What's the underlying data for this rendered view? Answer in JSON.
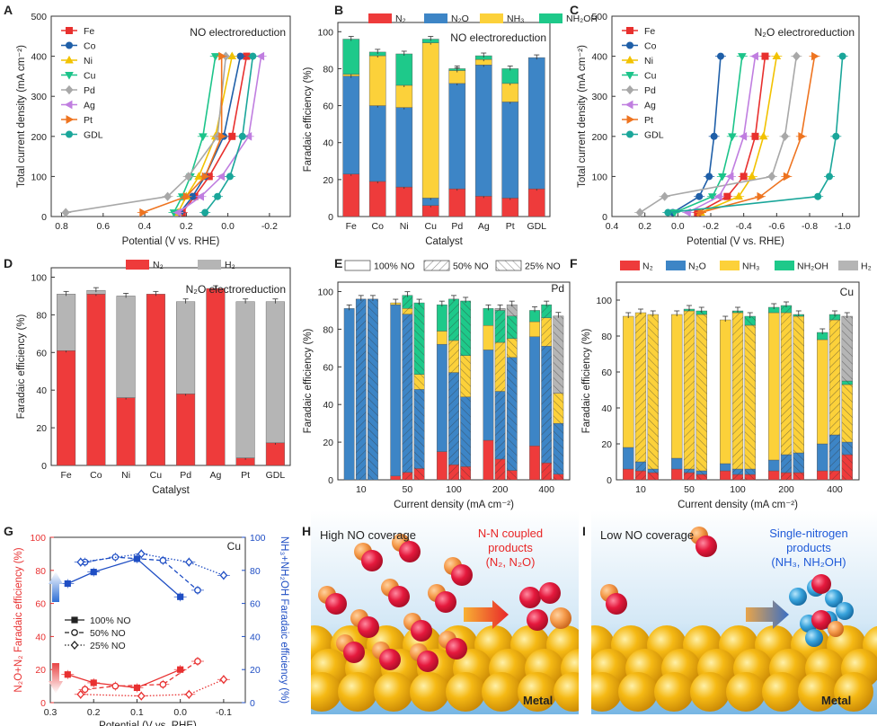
{
  "colors": {
    "N2": "#ee3b3b",
    "N2O": "#3d85c6",
    "NH3": "#fcd13a",
    "NH2OH": "#1ec98a",
    "H2": "#b5b5b5",
    "Fe": "#e8302e",
    "Co": "#1f5fa8",
    "Ni": "#f2c200",
    "Cu": "#1cc48a",
    "Pd": "#a8a8a8",
    "Ag": "#c07ee0",
    "Pt": "#ee7420",
    "GDL": "#1aa69a",
    "effRed": "#e83030",
    "effBlue": "#1f4ec4"
  },
  "chart_data": [
    {
      "id": "A",
      "type": "line",
      "letter": "A",
      "title": "NO electroreduction",
      "xlabel": "Potential (V vs. RHE)",
      "ylabel": "Total current density (mA cm⁻²)",
      "xlim": [
        0.85,
        -0.3
      ],
      "ylim": [
        0,
        500
      ],
      "xticks": [
        0.8,
        0.6,
        0.4,
        0.2,
        0.0,
        -0.2
      ],
      "xticklabels": [
        "0.8",
        "0.6",
        "0.4",
        "0.2",
        "0.0",
        "-0.2"
      ],
      "yticks": [
        0,
        100,
        200,
        300,
        400,
        500
      ],
      "legend": [
        "Fe",
        "Co",
        "Ni",
        "Cu",
        "Pd",
        "Ag",
        "Pt",
        "GDL"
      ],
      "y": [
        10,
        50,
        100,
        200,
        400
      ],
      "series": [
        {
          "name": "Fe",
          "marker": "square",
          "x": [
            0.22,
            0.16,
            0.09,
            -0.02,
            -0.09
          ]
        },
        {
          "name": "Co",
          "marker": "circle",
          "x": [
            0.23,
            0.17,
            0.11,
            0.02,
            -0.06
          ]
        },
        {
          "name": "Ni",
          "marker": "triangle-up",
          "x": [
            0.24,
            0.2,
            0.14,
            0.06,
            -0.02
          ]
        },
        {
          "name": "Cu",
          "marker": "triangle-down",
          "x": [
            0.26,
            0.22,
            0.18,
            0.12,
            0.06
          ]
        },
        {
          "name": "Pd",
          "marker": "diamond",
          "x": [
            0.78,
            0.29,
            0.19,
            0.05,
            0.01
          ]
        },
        {
          "name": "Ag",
          "marker": "triangle-left",
          "x": [
            0.24,
            0.13,
            0.03,
            -0.1,
            -0.16
          ]
        },
        {
          "name": "Pt",
          "marker": "triangle-right",
          "x": [
            0.41,
            0.2,
            0.11,
            0.03,
            0.03
          ]
        },
        {
          "name": "GDL",
          "marker": "circle",
          "x": [
            0.11,
            0.05,
            -0.01,
            -0.07,
            -0.12
          ]
        }
      ]
    },
    {
      "id": "B",
      "type": "bar",
      "letter": "B",
      "title": "NO electroreduction",
      "xlabel": "Catalyst",
      "ylabel": "Faradaic efficiency (%)",
      "ylim": [
        0,
        105
      ],
      "yticks": [
        0,
        20,
        40,
        60,
        80,
        100
      ],
      "categories": [
        "Fe",
        "Co",
        "Ni",
        "Cu",
        "Pd",
        "Ag",
        "Pt",
        "GDL"
      ],
      "legend": [
        "N₂",
        "N₂O",
        "NH₃",
        "NH₂OH"
      ],
      "series": [
        {
          "name": "N2",
          "values": [
            23,
            19,
            16,
            6,
            15,
            11,
            10,
            15
          ]
        },
        {
          "name": "N2O",
          "values": [
            53,
            41,
            43,
            4,
            57,
            71,
            52,
            71
          ]
        },
        {
          "name": "NH3",
          "values": [
            1,
            27,
            12,
            84,
            7,
            3,
            10,
            0
          ]
        },
        {
          "name": "NH2OH",
          "values": [
            19,
            2,
            17,
            2,
            1,
            2,
            8,
            0
          ]
        }
      ]
    },
    {
      "id": "C",
      "type": "line",
      "letter": "C",
      "title": "N₂O electroreduction",
      "xlabel": "Potential (V vs. RHE)",
      "ylabel": "Total current density (mA cm⁻²)",
      "xlim": [
        0.4,
        -1.1
      ],
      "ylim": [
        0,
        500
      ],
      "xticks": [
        0.4,
        0.2,
        0.0,
        -0.2,
        -0.4,
        -0.6,
        -0.8,
        -1.0
      ],
      "xticklabels": [
        "0.4",
        "0.2",
        "0.0",
        "-0.2",
        "-0.4",
        "-0.6",
        "-0.8",
        "-1.0"
      ],
      "yticks": [
        0,
        100,
        200,
        300,
        400,
        500
      ],
      "legend": [
        "Fe",
        "Co",
        "Ni",
        "Cu",
        "Pd",
        "Ag",
        "Pt",
        "GDL"
      ],
      "y": [
        10,
        50,
        100,
        200,
        400
      ],
      "series": [
        {
          "name": "Fe",
          "marker": "square",
          "x": [
            -0.12,
            -0.3,
            -0.4,
            -0.47,
            -0.53
          ]
        },
        {
          "name": "Co",
          "marker": "circle",
          "x": [
            0.03,
            -0.13,
            -0.19,
            -0.22,
            -0.26
          ]
        },
        {
          "name": "Ni",
          "marker": "triangle-up",
          "x": [
            -0.14,
            -0.37,
            -0.45,
            -0.52,
            -0.6
          ]
        },
        {
          "name": "Cu",
          "marker": "triangle-down",
          "x": [
            0.02,
            -0.21,
            -0.27,
            -0.33,
            -0.39
          ]
        },
        {
          "name": "Pd",
          "marker": "diamond",
          "x": [
            0.23,
            0.08,
            -0.57,
            -0.65,
            -0.72
          ]
        },
        {
          "name": "Ag",
          "marker": "triangle-left",
          "x": [
            -0.06,
            -0.25,
            -0.32,
            -0.4,
            -0.47
          ]
        },
        {
          "name": "Pt",
          "marker": "triangle-right",
          "x": [
            -0.14,
            -0.5,
            -0.66,
            -0.75,
            -0.83
          ]
        },
        {
          "name": "GDL",
          "marker": "circle",
          "x": [
            0.06,
            -0.85,
            -0.92,
            -0.96,
            -1.0
          ]
        }
      ]
    },
    {
      "id": "D",
      "type": "bar",
      "letter": "D",
      "title": "N₂O electroreduction",
      "xlabel": "Catalyst",
      "ylabel": "Faradaic efficiency (%)",
      "ylim": [
        0,
        105
      ],
      "yticks": [
        0,
        20,
        40,
        60,
        80,
        100
      ],
      "categories": [
        "Fe",
        "Co",
        "Ni",
        "Cu",
        "Pd",
        "Ag",
        "Pt",
        "GDL"
      ],
      "legend": [
        "N₂",
        "H₂"
      ],
      "series": [
        {
          "name": "N2",
          "values": [
            61,
            91,
            36,
            91,
            38,
            94,
            4,
            12
          ]
        },
        {
          "name": "H2",
          "values": [
            30,
            2,
            54,
            0,
            49,
            0,
            83,
            75
          ]
        }
      ]
    },
    {
      "id": "E",
      "type": "bar",
      "letter": "E",
      "label": "Pd",
      "xlabel": "Current density (mA cm⁻²)",
      "ylabel": "Faradaic efficiency (%)",
      "ylim": [
        0,
        105
      ],
      "yticks": [
        0,
        20,
        40,
        60,
        80,
        100
      ],
      "categories": [
        "10",
        "50",
        "100",
        "200",
        "400"
      ],
      "conditions": [
        "100% NO",
        "50% NO",
        "25% NO"
      ],
      "products": [
        "N2",
        "N2O",
        "NH3",
        "NH2OH",
        "H2"
      ],
      "stacks": [
        [
          [
            0,
            91,
            0,
            0,
            0
          ],
          [
            0,
            96,
            0,
            0,
            0
          ],
          [
            0,
            96,
            0,
            0,
            0
          ]
        ],
        [
          [
            2,
            91,
            1,
            0,
            0
          ],
          [
            4,
            84,
            3,
            7,
            0
          ],
          [
            6,
            42,
            8,
            38,
            0
          ]
        ],
        [
          [
            15,
            57,
            7,
            14,
            0
          ],
          [
            8,
            49,
            17,
            22,
            0
          ],
          [
            7,
            37,
            22,
            29,
            0
          ]
        ],
        [
          [
            21,
            48,
            13,
            9,
            0
          ],
          [
            11,
            36,
            26,
            17,
            1
          ],
          [
            5,
            60,
            10,
            12,
            6
          ]
        ],
        [
          [
            18,
            58,
            8,
            6,
            0
          ],
          [
            9,
            62,
            15,
            7,
            0
          ],
          [
            3,
            27,
            16,
            0,
            41
          ]
        ]
      ]
    },
    {
      "id": "F",
      "type": "bar",
      "letter": "F",
      "label": "Cu",
      "xlabel": "Current density (mA cm⁻²)",
      "ylabel": "Faradaic efficiency (%)",
      "ylim": [
        0,
        110
      ],
      "yticks": [
        0,
        20,
        40,
        60,
        80,
        100
      ],
      "categories": [
        "10",
        "50",
        "100",
        "200",
        "400"
      ],
      "legend": [
        "N₂",
        "N₂O",
        "NH₃",
        "NH₂OH",
        "H₂"
      ],
      "products": [
        "N2",
        "N2O",
        "NH3",
        "NH2OH",
        "H2"
      ],
      "stacks": [
        [
          [
            6,
            12,
            73,
            0,
            0
          ],
          [
            5,
            5,
            83,
            0,
            0
          ],
          [
            4,
            2,
            86,
            0,
            0
          ]
        ],
        [
          [
            6,
            6,
            80,
            0,
            0
          ],
          [
            4,
            2,
            88,
            1,
            0
          ],
          [
            3,
            2,
            87,
            2,
            0
          ]
        ],
        [
          [
            5,
            4,
            80,
            0,
            0
          ],
          [
            3,
            3,
            87,
            1,
            0
          ],
          [
            3,
            3,
            80,
            5,
            0
          ]
        ],
        [
          [
            5,
            6,
            82,
            3,
            0
          ],
          [
            4,
            10,
            79,
            4,
            0
          ],
          [
            4,
            11,
            76,
            1,
            0
          ]
        ],
        [
          [
            5,
            15,
            58,
            4,
            0
          ],
          [
            5,
            20,
            64,
            3,
            0
          ],
          [
            14,
            7,
            32,
            2,
            36
          ]
        ]
      ]
    },
    {
      "id": "G",
      "type": "scatter",
      "letter": "G",
      "label": "Cu",
      "xlabel": "Potential (V vs. RHE)",
      "ylabel_left": "N₂O+N₂ Faradaic efficiency (%)",
      "ylabel_right": "NH₃+NH₂OH Faradaic efficiency (%)",
      "xlim": [
        0.3,
        -0.15
      ],
      "ylim": [
        0,
        100
      ],
      "xticks": [
        0.3,
        0.2,
        0.1,
        0.0,
        -0.1
      ],
      "xticklabels": [
        "0.3",
        "0.2",
        "0.1",
        "0.0",
        "-0.1"
      ],
      "yticks": [
        0,
        20,
        40,
        60,
        80,
        100
      ],
      "legend": [
        "100% NO",
        "50% NO",
        "25% NO"
      ],
      "series": [
        {
          "name": "100% NO",
          "axis": "left",
          "marker": "square",
          "x": [
            0.26,
            0.2,
            0.1,
            0.0
          ],
          "y": [
            17,
            12,
            9,
            20
          ]
        },
        {
          "name": "50% NO",
          "axis": "left",
          "marker": "circle",
          "x": [
            0.22,
            0.15,
            0.04,
            -0.04
          ],
          "y": [
            8,
            10,
            11,
            25
          ]
        },
        {
          "name": "25% NO",
          "axis": "left",
          "marker": "diamond",
          "x": [
            0.23,
            0.09,
            -0.02,
            -0.1
          ],
          "y": [
            5,
            4,
            5,
            14
          ]
        },
        {
          "name": "100% NO",
          "axis": "right",
          "marker": "square",
          "x": [
            0.26,
            0.2,
            0.1,
            0.0
          ],
          "y": [
            72,
            79,
            87,
            64
          ]
        },
        {
          "name": "50% NO",
          "axis": "right",
          "marker": "circle",
          "x": [
            0.22,
            0.15,
            0.04,
            -0.04
          ],
          "y": [
            85,
            88,
            86,
            68
          ]
        },
        {
          "name": "25% NO",
          "axis": "right",
          "marker": "diamond",
          "x": [
            0.23,
            0.09,
            -0.02,
            -0.1
          ],
          "y": [
            85,
            90,
            85,
            77
          ]
        }
      ]
    }
  ],
  "schemes": {
    "H": {
      "letter": "H",
      "coverage": "High NO coverage",
      "products_title": "N-N coupled",
      "products_line2": "products",
      "products_line3": "(N₂, N₂O)",
      "metal": "Metal"
    },
    "I": {
      "letter": "I",
      "coverage": "Low NO coverage",
      "products_title": "Single-nitrogen",
      "products_line2": "products",
      "products_line3": "(NH₃, NH₂OH)",
      "metal": "Metal"
    }
  }
}
